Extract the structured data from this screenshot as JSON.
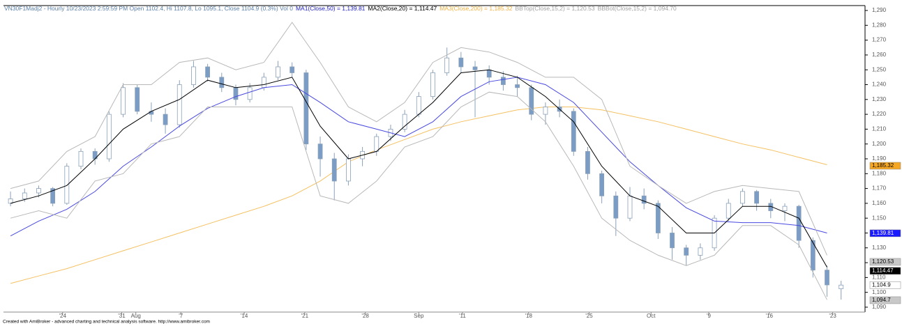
{
  "chart_data": {
    "type": "candlestick",
    "header": [
      {
        "text": "VN30F1Madj2 - Hourly 10/23/2023 2:59:59 PM Open 1102.4, Hi 1107.8, Lo 1095.1, Close 1104.9 (0.3%) Vol 0",
        "color": "#5a7fa8"
      },
      {
        "text": "MA1(Close,50) = 1,139.81",
        "color": "#2020c0"
      },
      {
        "text": "MA2(Close,20) = 1,114.47",
        "color": "#000000"
      },
      {
        "text": "MA3(Close,200) = 1,185.32",
        "color": "#f0b040"
      },
      {
        "text": "BBTop(Close,15,2) = 1,120.53",
        "color": "#a0a0a0"
      },
      {
        "text": "BBBot(Close,15,2) = 1,094.70",
        "color": "#a0a0a0"
      }
    ],
    "footer": "Created with AmiBroker - advanced charting and technical analysis software. http://www.amibroker.com",
    "x": [
      0,
      1,
      2,
      3,
      4,
      5,
      6,
      7,
      8,
      9,
      10,
      11,
      12,
      13,
      14,
      15,
      16,
      17,
      18,
      19,
      20,
      21,
      22,
      23,
      24,
      25,
      26,
      27,
      28,
      29,
      30,
      31,
      32,
      33,
      34,
      35,
      36,
      37,
      38,
      39,
      40,
      41,
      42,
      43,
      44,
      45,
      46,
      47,
      48,
      49,
      50,
      51,
      52,
      53,
      54,
      55,
      56,
      57,
      58,
      59
    ],
    "ohlc": [
      [
        1160,
        1168,
        1158,
        1163
      ],
      [
        1163,
        1170,
        1161,
        1167
      ],
      [
        1167,
        1172,
        1164,
        1170
      ],
      [
        1170,
        1171,
        1158,
        1160
      ],
      [
        1160,
        1187,
        1159,
        1185
      ],
      [
        1185,
        1197,
        1183,
        1195
      ],
      [
        1195,
        1197,
        1186,
        1190
      ],
      [
        1190,
        1222,
        1188,
        1220
      ],
      [
        1220,
        1241,
        1218,
        1238
      ],
      [
        1238,
        1240,
        1220,
        1222
      ],
      [
        1222,
        1228,
        1215,
        1220
      ],
      [
        1220,
        1224,
        1207,
        1213
      ],
      [
        1213,
        1243,
        1211,
        1240
      ],
      [
        1240,
        1256,
        1238,
        1252
      ],
      [
        1252,
        1254,
        1242,
        1245
      ],
      [
        1245,
        1248,
        1235,
        1238
      ],
      [
        1238,
        1240,
        1226,
        1230
      ],
      [
        1230,
        1241,
        1228,
        1238
      ],
      [
        1238,
        1248,
        1236,
        1245
      ],
      [
        1245,
        1256,
        1243,
        1252
      ],
      [
        1252,
        1255,
        1245,
        1248
      ],
      [
        1248,
        1250,
        1196,
        1200
      ],
      [
        1200,
        1205,
        1178,
        1190
      ],
      [
        1190,
        1194,
        1162,
        1175
      ],
      [
        1175,
        1193,
        1172,
        1190
      ],
      [
        1190,
        1198,
        1185,
        1195
      ],
      [
        1195,
        1207,
        1192,
        1205
      ],
      [
        1205,
        1213,
        1202,
        1210
      ],
      [
        1210,
        1223,
        1208,
        1220
      ],
      [
        1220,
        1235,
        1218,
        1232
      ],
      [
        1232,
        1250,
        1230,
        1248
      ],
      [
        1248,
        1265,
        1246,
        1258
      ],
      [
        1258,
        1262,
        1248,
        1252
      ],
      [
        1252,
        1256,
        1218,
        1250
      ],
      [
        1250,
        1253,
        1240,
        1245
      ],
      [
        1245,
        1249,
        1236,
        1240
      ],
      [
        1240,
        1246,
        1232,
        1238
      ],
      [
        1238,
        1240,
        1216,
        1220
      ],
      [
        1220,
        1228,
        1213,
        1225
      ],
      [
        1225,
        1230,
        1218,
        1222
      ],
      [
        1222,
        1224,
        1192,
        1195
      ],
      [
        1195,
        1198,
        1176,
        1180
      ],
      [
        1180,
        1182,
        1160,
        1165
      ],
      [
        1165,
        1168,
        1138,
        1150
      ],
      [
        1150,
        1171,
        1148,
        1165
      ],
      [
        1165,
        1170,
        1156,
        1160
      ],
      [
        1160,
        1162,
        1136,
        1140
      ],
      [
        1140,
        1144,
        1122,
        1130
      ],
      [
        1130,
        1132,
        1118,
        1125
      ],
      [
        1125,
        1133,
        1122,
        1130
      ],
      [
        1130,
        1152,
        1128,
        1150
      ],
      [
        1150,
        1163,
        1148,
        1160
      ],
      [
        1160,
        1170,
        1158,
        1168
      ],
      [
        1168,
        1169,
        1155,
        1160
      ],
      [
        1160,
        1163,
        1150,
        1155
      ],
      [
        1155,
        1160,
        1148,
        1158
      ],
      [
        1158,
        1159,
        1130,
        1135
      ],
      [
        1135,
        1137,
        1110,
        1115
      ],
      [
        1115,
        1118,
        1097,
        1105
      ],
      [
        1102.4,
        1107.8,
        1095.1,
        1104.9
      ]
    ],
    "up_color": "#ffffff",
    "down_color": "#7b9cc4",
    "wick_color": "#8aa0b8",
    "lines": [
      {
        "color": "#f5c060",
        "x": [
          0,
          2,
          4,
          6,
          8,
          10,
          12,
          14,
          16,
          18,
          20,
          22,
          24,
          26,
          28,
          30,
          32,
          34,
          36,
          38,
          40,
          42,
          44,
          46,
          48,
          50,
          52,
          54,
          56,
          58
        ],
        "values": [
          1106,
          1111,
          1116,
          1122,
          1128,
          1134,
          1140,
          1146,
          1152,
          1158,
          1165,
          1175,
          1188,
          1196,
          1203,
          1210,
          1215,
          1219,
          1223,
          1225,
          1225,
          1223,
          1219,
          1215,
          1210,
          1205,
          1200,
          1196,
          1191,
          1186
        ]
      },
      {
        "color": "#4848e0",
        "x": [
          0,
          2,
          4,
          6,
          8,
          10,
          12,
          14,
          16,
          18,
          20,
          22,
          24,
          26,
          28,
          30,
          32,
          34,
          36,
          38,
          40,
          42,
          44,
          46,
          48,
          50,
          52,
          54,
          56,
          58
        ],
        "values": [
          1138,
          1148,
          1156,
          1168,
          1185,
          1198,
          1212,
          1224,
          1232,
          1238,
          1240,
          1228,
          1215,
          1210,
          1205,
          1215,
          1232,
          1242,
          1245,
          1240,
          1228,
          1208,
          1188,
          1172,
          1157,
          1148,
          1147,
          1147,
          1145,
          1140
        ]
      },
      {
        "color": "#000000",
        "x": [
          0,
          2,
          4,
          6,
          8,
          10,
          12,
          14,
          16,
          18,
          20,
          22,
          24,
          26,
          28,
          30,
          32,
          34,
          36,
          38,
          40,
          42,
          44,
          46,
          48,
          50,
          52,
          54,
          56,
          58
        ],
        "values": [
          1160,
          1165,
          1172,
          1190,
          1210,
          1222,
          1230,
          1243,
          1238,
          1240,
          1245,
          1212,
          1190,
          1195,
          1212,
          1228,
          1248,
          1250,
          1245,
          1232,
          1215,
          1185,
          1165,
          1158,
          1140,
          1140,
          1158,
          1158,
          1150,
          1117
        ]
      },
      {
        "color": "#b8b8b8",
        "x": [
          0,
          2,
          4,
          6,
          8,
          10,
          12,
          14,
          16,
          18,
          20,
          22,
          24,
          26,
          28,
          30,
          32,
          34,
          36,
          38,
          40,
          42,
          44,
          46,
          48,
          50,
          52,
          54,
          56,
          58
        ],
        "values": [
          1170,
          1175,
          1195,
          1205,
          1240,
          1240,
          1255,
          1258,
          1250,
          1255,
          1282,
          1255,
          1225,
          1215,
          1228,
          1255,
          1265,
          1262,
          1255,
          1245,
          1245,
          1230,
          1185,
          1172,
          1160,
          1168,
          1172,
          1170,
          1168,
          1125
        ]
      },
      {
        "color": "#b8b8b8",
        "x": [
          0,
          2,
          4,
          6,
          8,
          10,
          12,
          14,
          16,
          18,
          20,
          22,
          24,
          26,
          28,
          30,
          32,
          34,
          36,
          38,
          40,
          42,
          44,
          46,
          48,
          50,
          52,
          54,
          56,
          58
        ],
        "values": [
          1150,
          1155,
          1150,
          1175,
          1180,
          1200,
          1205,
          1225,
          1225,
          1225,
          1225,
          1165,
          1160,
          1175,
          1198,
          1205,
          1225,
          1235,
          1232,
          1215,
          1185,
          1150,
          1135,
          1125,
          1118,
          1125,
          1145,
          1145,
          1132,
          1095
        ]
      }
    ],
    "price_tags": [
      {
        "value": 1185.32,
        "label": "1,185.32",
        "color": "#f5a623",
        "text_color": "#000000"
      },
      {
        "value": 1139.81,
        "label": "1,139.81",
        "color": "#1a1aff",
        "text_color": "#ffffff"
      },
      {
        "value": 1120.53,
        "label": "1,120.53",
        "color": "#c8c8c8",
        "text_color": "#000000"
      },
      {
        "value": 1114.47,
        "label": "1,114.47",
        "color": "#000000",
        "text_color": "#ffffff"
      },
      {
        "value": 1104.9,
        "label": "1,104.9",
        "color": "#ffffff",
        "text_color": "#000000"
      },
      {
        "value": 1094.7,
        "label": "1,094.7",
        "color": "#c8c8c8",
        "text_color": "#000000"
      }
    ],
    "xlim": [
      -0.5,
      60.7
    ],
    "xticks": [
      {
        "value": 3.7,
        "label": "'24"
      },
      {
        "value": 7.9,
        "label": "'31"
      },
      {
        "value": 8.9,
        "label": "Aug"
      },
      {
        "value": 12.1,
        "label": "'7"
      },
      {
        "value": 16.6,
        "label": "'14"
      },
      {
        "value": 20.9,
        "label": "'21"
      },
      {
        "value": 25.2,
        "label": "'28"
      },
      {
        "value": 29.0,
        "label": "Sep"
      },
      {
        "value": 32.1,
        "label": "'11"
      },
      {
        "value": 36.8,
        "label": "'18"
      },
      {
        "value": 41.1,
        "label": "'25"
      },
      {
        "value": 45.5,
        "label": "Oct"
      },
      {
        "value": 49.6,
        "label": "'9"
      },
      {
        "value": 53.9,
        "label": "'16"
      },
      {
        "value": 58.4,
        "label": "'23"
      }
    ],
    "ylim": [
      1086.7,
      1293.3
    ],
    "yticks": [
      {
        "value": 1090,
        "label": "1,090"
      },
      {
        "value": 1100,
        "label": "1,100"
      },
      {
        "value": 1110,
        "label": "1,110"
      },
      {
        "value": 1120,
        "label": "1,120"
      },
      {
        "value": 1130,
        "label": "1,130"
      },
      {
        "value": 1140,
        "label": "1,140"
      },
      {
        "value": 1150,
        "label": "1,150"
      },
      {
        "value": 1160,
        "label": "1,160"
      },
      {
        "value": 1170,
        "label": "1,170"
      },
      {
        "value": 1180,
        "label": "1,180"
      },
      {
        "value": 1190,
        "label": "1,190"
      },
      {
        "value": 1200,
        "label": "1,200"
      },
      {
        "value": 1210,
        "label": "1,210"
      },
      {
        "value": 1220,
        "label": "1,220"
      },
      {
        "value": 1230,
        "label": "1,230"
      },
      {
        "value": 1240,
        "label": "1,240"
      },
      {
        "value": 1250,
        "label": "1,250"
      },
      {
        "value": 1260,
        "label": "1,260"
      },
      {
        "value": 1270,
        "label": "1,270"
      },
      {
        "value": 1280,
        "label": "1,280"
      },
      {
        "value": 1290,
        "label": "1,290"
      }
    ]
  }
}
